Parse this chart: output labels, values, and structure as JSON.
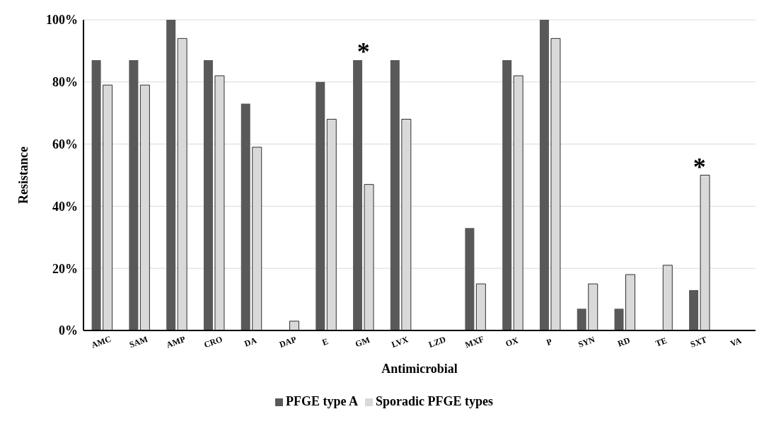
{
  "chart_data": {
    "type": "bar",
    "xlabel": "Antimicrobial",
    "ylabel": "Resistance",
    "categories": [
      "AMC",
      "SAM",
      "AMP",
      "CRO",
      "DA",
      "DAP",
      "E",
      "GM",
      "LVX",
      "LZD",
      "MXF",
      "OX",
      "P",
      "SYN",
      "RD",
      "TE",
      "SXT",
      "VA"
    ],
    "series": [
      {
        "name": "PFGE type A",
        "color": "#595959",
        "values": [
          87,
          87,
          100,
          87,
          73,
          0,
          80,
          87,
          87,
          0,
          33,
          87,
          100,
          7,
          7,
          0,
          13,
          0
        ]
      },
      {
        "name": "Sporadic PFGE types",
        "color": "#d9d9d9",
        "values": [
          79,
          79,
          94,
          82,
          59,
          3,
          68,
          47,
          68,
          0,
          15,
          82,
          94,
          15,
          18,
          21,
          50,
          0
        ]
      }
    ],
    "ylim": [
      0,
      100
    ],
    "yticks": [
      {
        "value": 0,
        "label": "0%"
      },
      {
        "value": 20,
        "label": "20%"
      },
      {
        "value": 40,
        "label": "40%"
      },
      {
        "value": 60,
        "label": "60%"
      },
      {
        "value": 80,
        "label": "80%"
      },
      {
        "value": 100,
        "label": "100%"
      }
    ],
    "grid": "y",
    "legend": "bottom",
    "annotations": [
      {
        "text": "*",
        "x": "GM",
        "y": 87
      },
      {
        "text": "*",
        "x": "SXT",
        "y": 50
      }
    ]
  }
}
